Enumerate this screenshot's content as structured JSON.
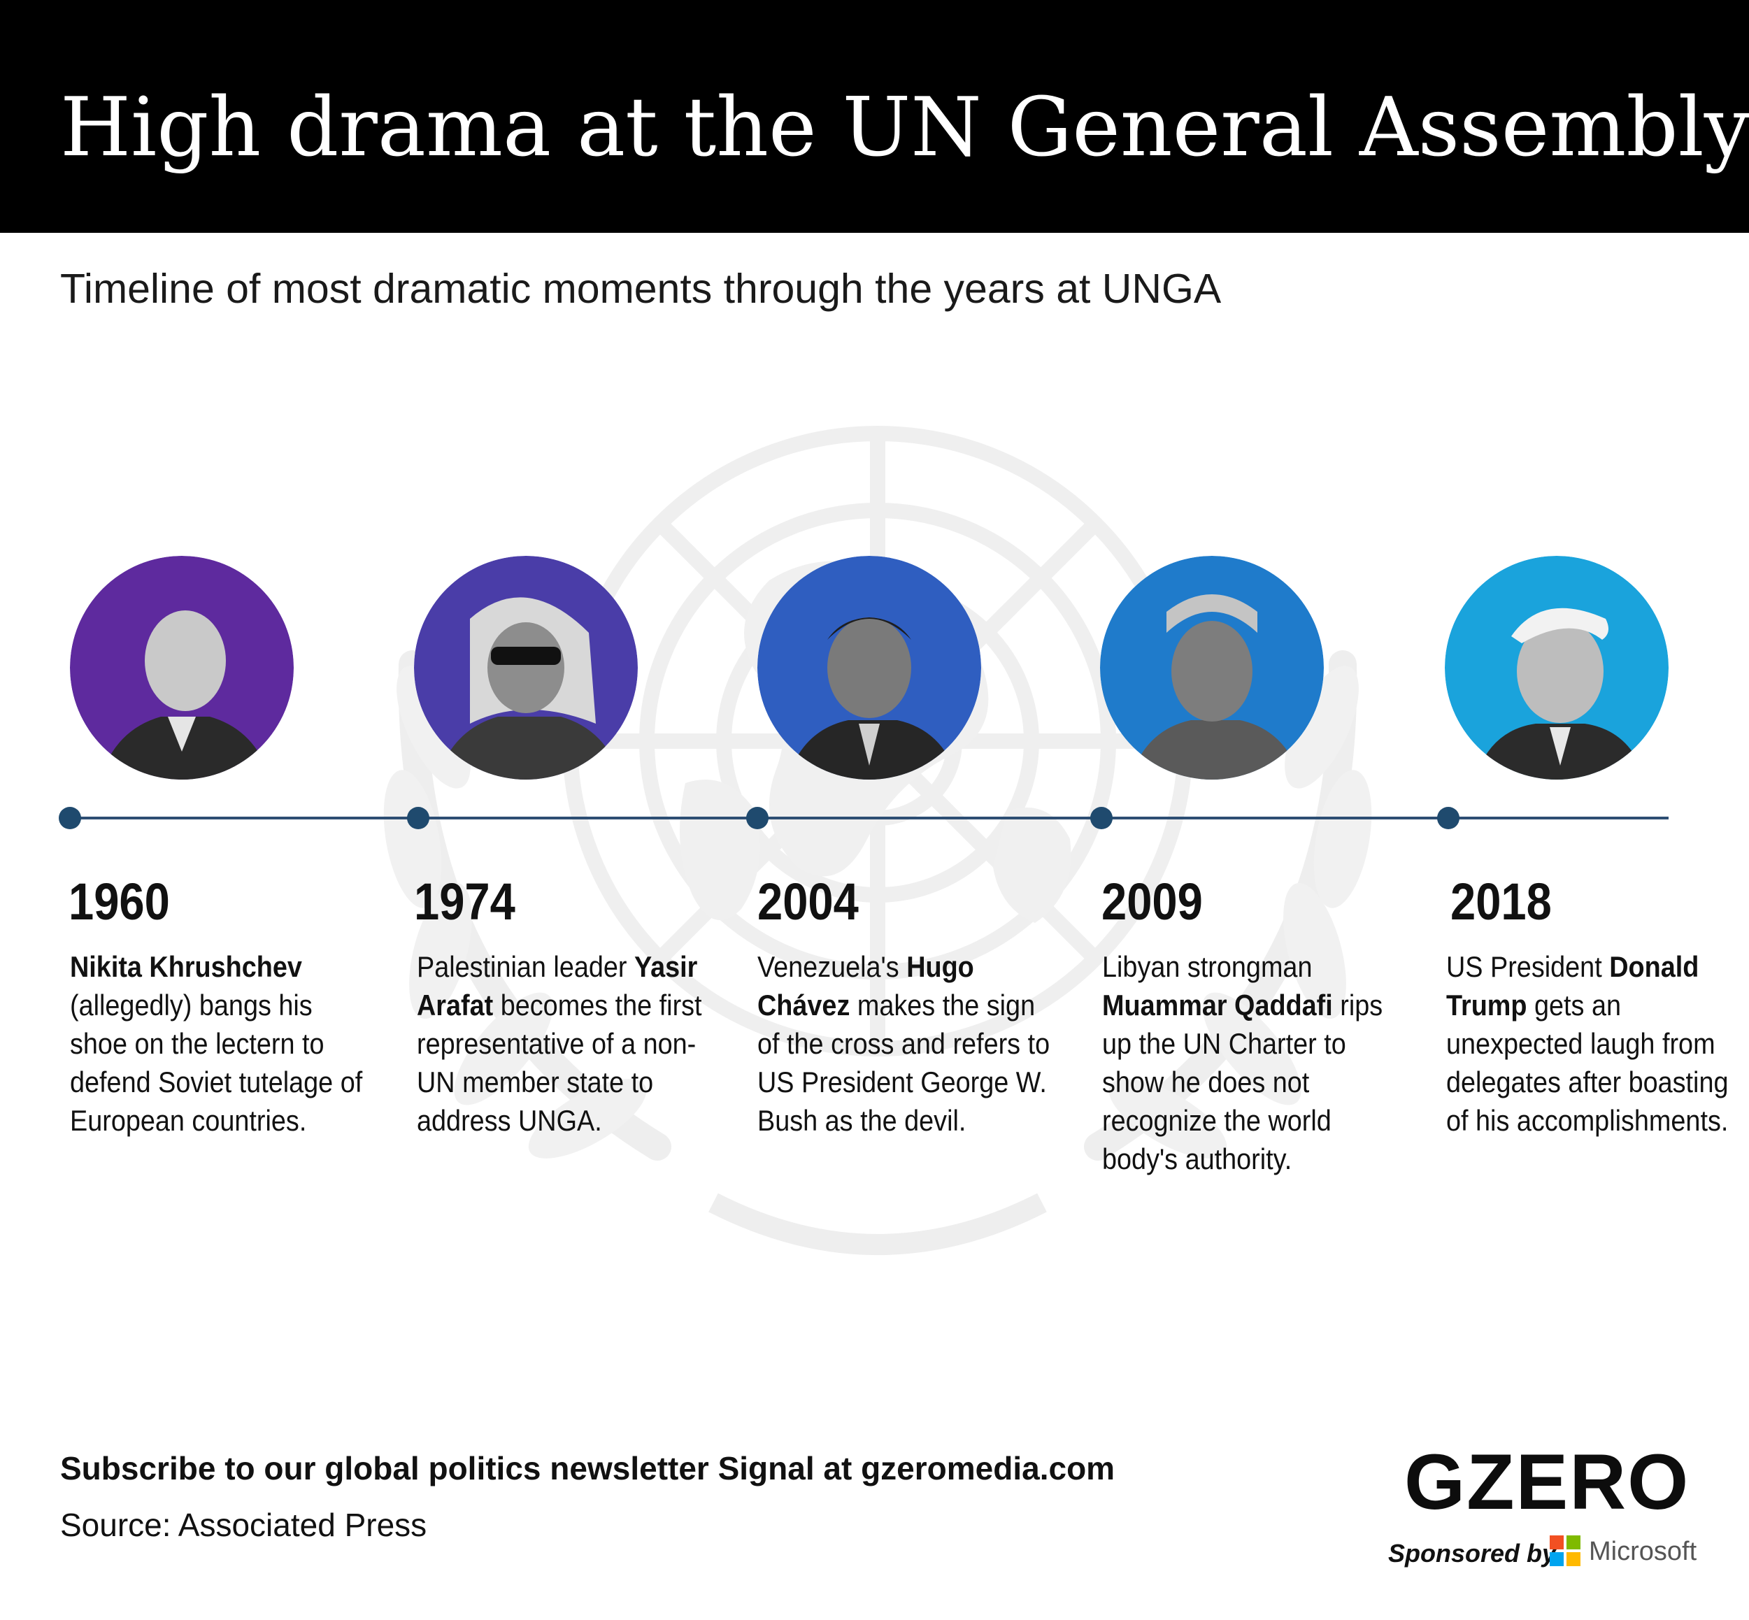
{
  "header": {
    "title": "High drama at the UN General Assembly",
    "background": "#000000"
  },
  "subtitle": "Timeline of most dramatic moments through the years at UNGA",
  "timeline": {
    "line_color": "#2d4e73",
    "events": [
      {
        "year": "1960",
        "circle_color": "#5e2a9e",
        "parts": [
          {
            "text": "Nikita Khrushchev",
            "bold": true
          },
          {
            "text": " (allegedly) bangs his shoe on the lectern to defend Soviet tutelage of European countries.",
            "bold": false
          }
        ]
      },
      {
        "year": "1974",
        "circle_color": "#4a3da8",
        "parts": [
          {
            "text": "Palestinian leader ",
            "bold": false
          },
          {
            "text": "Yasir Arafat",
            "bold": true
          },
          {
            "text": " becomes the first representative of a non-UN member state to address UNGA.",
            "bold": false
          }
        ]
      },
      {
        "year": "2004",
        "circle_color": "#2f5ec0",
        "parts": [
          {
            "text": "Venezuela's ",
            "bold": false
          },
          {
            "text": "Hugo Chávez",
            "bold": true
          },
          {
            "text": " makes the sign of the cross and refers to US President George W. Bush as the devil.",
            "bold": false
          }
        ]
      },
      {
        "year": "2009",
        "circle_color": "#1f7bcb",
        "parts": [
          {
            "text": "Libyan strongman ",
            "bold": false
          },
          {
            "text": "Muammar Qaddafi",
            "bold": true
          },
          {
            "text": " rips up the UN Charter to show he does not recognize the world body's authority.",
            "bold": false
          }
        ]
      },
      {
        "year": "2018",
        "circle_color": "#1aa3dc",
        "parts": [
          {
            "text": "US President ",
            "bold": false
          },
          {
            "text": "Donald Trump",
            "bold": true
          },
          {
            "text": " gets an unexpected laugh from delegates after boasting of his accomplishments.",
            "bold": false
          }
        ]
      }
    ]
  },
  "footer": {
    "cta": "Subscribe to our global politics newsletter Signal at gzeromedia.com",
    "source": "Source: Associated Press",
    "logo": "GZERO",
    "sponsored_by": "Sponsored by",
    "sponsor": "Microsoft",
    "sponsor_colors": [
      "#f25022",
      "#7fba00",
      "#00a4ef",
      "#ffb900"
    ]
  }
}
